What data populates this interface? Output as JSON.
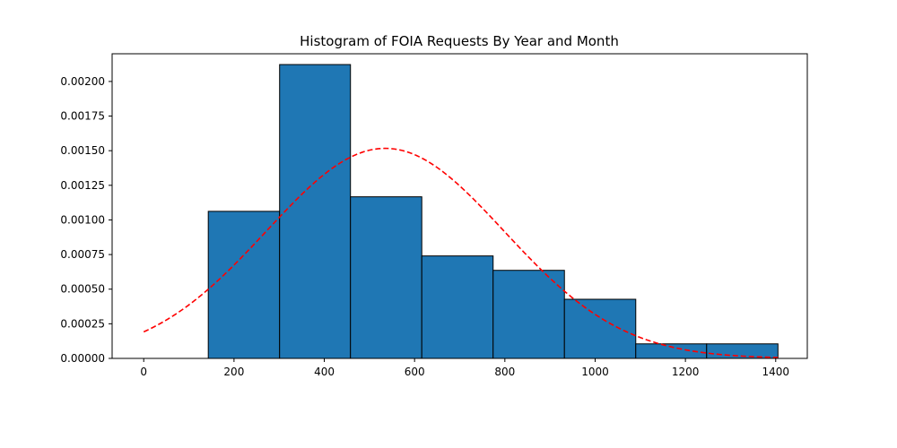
{
  "chart_data": {
    "type": "bar",
    "title": "Histogram of FOIA Requests By Year and Month",
    "xlabel": "",
    "ylabel": "",
    "xlim": [
      -70,
      1470
    ],
    "ylim": [
      0,
      0.0022
    ],
    "grid": false,
    "bar_color": "#1f77b4",
    "bins": [
      {
        "x0": 143,
        "x1": 301,
        "value": 0.001062
      },
      {
        "x0": 301,
        "x1": 458,
        "value": 0.002122
      },
      {
        "x0": 458,
        "x1": 616,
        "value": 0.001167
      },
      {
        "x0": 616,
        "x1": 774,
        "value": 0.00074
      },
      {
        "x0": 774,
        "x1": 932,
        "value": 0.000636
      },
      {
        "x0": 932,
        "x1": 1090,
        "value": 0.000427
      },
      {
        "x0": 1090,
        "x1": 1247,
        "value": 0.000105
      },
      {
        "x0": 1247,
        "x1": 1405,
        "value": 0.000105
      }
    ],
    "fit_curve": {
      "type": "normal-pdf",
      "mean": 535,
      "std": 263,
      "x_range": [
        0,
        1405
      ],
      "color": "#ff0000",
      "style": "dashed"
    },
    "x_ticks": [
      {
        "value": 0,
        "label": "0"
      },
      {
        "value": 200,
        "label": "200"
      },
      {
        "value": 400,
        "label": "400"
      },
      {
        "value": 600,
        "label": "600"
      },
      {
        "value": 800,
        "label": "800"
      },
      {
        "value": 1000,
        "label": "1000"
      },
      {
        "value": 1200,
        "label": "1200"
      },
      {
        "value": 1400,
        "label": "1400"
      }
    ],
    "y_ticks": [
      {
        "value": 0,
        "label": "0.00000"
      },
      {
        "value": 0.00025,
        "label": "0.00025"
      },
      {
        "value": 0.0005,
        "label": "0.00050"
      },
      {
        "value": 0.00075,
        "label": "0.00075"
      },
      {
        "value": 0.001,
        "label": "0.00100"
      },
      {
        "value": 0.00125,
        "label": "0.00125"
      },
      {
        "value": 0.0015,
        "label": "0.00150"
      },
      {
        "value": 0.00175,
        "label": "0.00175"
      },
      {
        "value": 0.002,
        "label": "0.00200"
      }
    ]
  }
}
